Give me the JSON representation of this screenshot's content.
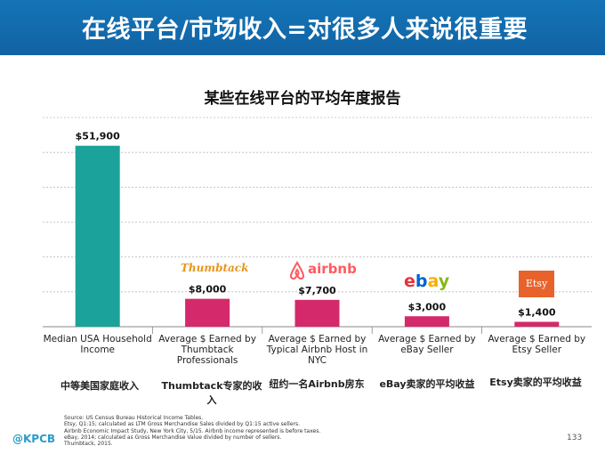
{
  "banner": {
    "title": "在线平台/市场收入=对很多人来说很重要"
  },
  "colors": {
    "banner": "#1468ac",
    "teal": "#1ba29a",
    "pink": "#d4296a",
    "grid": "#bbbbbb"
  },
  "chart_data": {
    "type": "bar",
    "title": "某些在线平台的平均年度报告",
    "categories": [
      "Median USA Household Income",
      "Average $ Earned by Thumbtack Professionals",
      "Average $ Earned by Typical Airbnb Host in NYC",
      "Average $ Earned by eBay Seller",
      "Average $ Earned by Etsy Seller"
    ],
    "category_lines": [
      [
        "Median USA Household",
        "Income"
      ],
      [
        "Average $ Earned by",
        "Thumbtack",
        "Professionals"
      ],
      [
        "Average $ Earned by",
        "Typical Airbnb Host in",
        "NYC"
      ],
      [
        "Average $ Earned by",
        "eBay Seller"
      ],
      [
        "Average $ Earned by",
        "Etsy Seller"
      ]
    ],
    "values": [
      51900,
      8000,
      7700,
      3000,
      1400
    ],
    "value_labels": [
      "$51,900",
      "$8,000",
      "$7,700",
      "$3,000",
      "$1,400"
    ],
    "bar_colors": [
      "#1ba29a",
      "#d4296a",
      "#d4296a",
      "#d4296a",
      "#d4296a"
    ],
    "annotations_cn": [
      "中等美国家庭收入",
      "Thumbtack专家的收入",
      "纽约一名Airbnb房东",
      "eBay卖家的平均收益",
      "Etsy卖家的平均收益"
    ],
    "brands": [
      "",
      "Thumbtack",
      "airbnb",
      "ebay",
      "Etsy"
    ],
    "ylim": [
      0,
      60000
    ],
    "grid": true,
    "xlabel": "",
    "ylabel": ""
  },
  "sources": [
    "Source: US Census Bureau Historical Income Tables.",
    "Etsy, Q1:15; calculated as LTM Gross Merchandise Sales divided by Q1:15 active sellers.",
    "Airbnb Economic Impact Study, New York City, 5/15. Airbnb income represented is before taxes.",
    "eBay, 2014; calculated as Gross Merchandise Value divided by number of sellers.",
    "Thumbtack, 2015."
  ],
  "footer": {
    "logo": "@KPCB",
    "page": "133"
  }
}
